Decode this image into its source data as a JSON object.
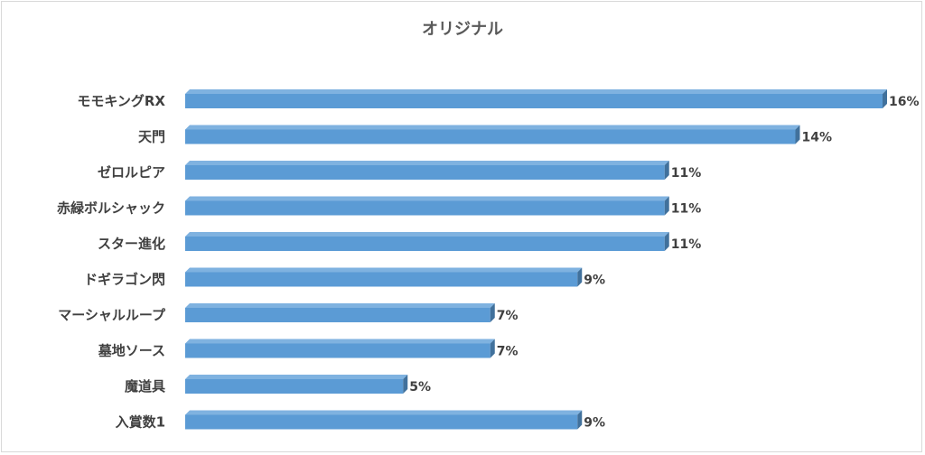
{
  "chart_data": {
    "type": "bar",
    "orientation": "horizontal",
    "title": "オリジナル",
    "categories": [
      "モモキングRX",
      "天門",
      "ゼロルピア",
      "赤緑ボルシャック",
      "スター進化",
      "ドギラゴン閃",
      "マーシャルループ",
      "墓地ソース",
      "魔道具",
      "入賞数1"
    ],
    "values": [
      16,
      14,
      11,
      11,
      11,
      9,
      7,
      7,
      5,
      9
    ],
    "value_labels": [
      "16%",
      "14%",
      "11%",
      "11%",
      "11%",
      "9%",
      "7%",
      "7%",
      "5%",
      "9%"
    ],
    "unit": "%",
    "xlim": [
      0,
      16
    ],
    "grid": false,
    "legend": "none",
    "bar_color": "#5b9bd5",
    "bar_top_color": "#7fb2e0",
    "bar_side_color": "#41719c"
  }
}
